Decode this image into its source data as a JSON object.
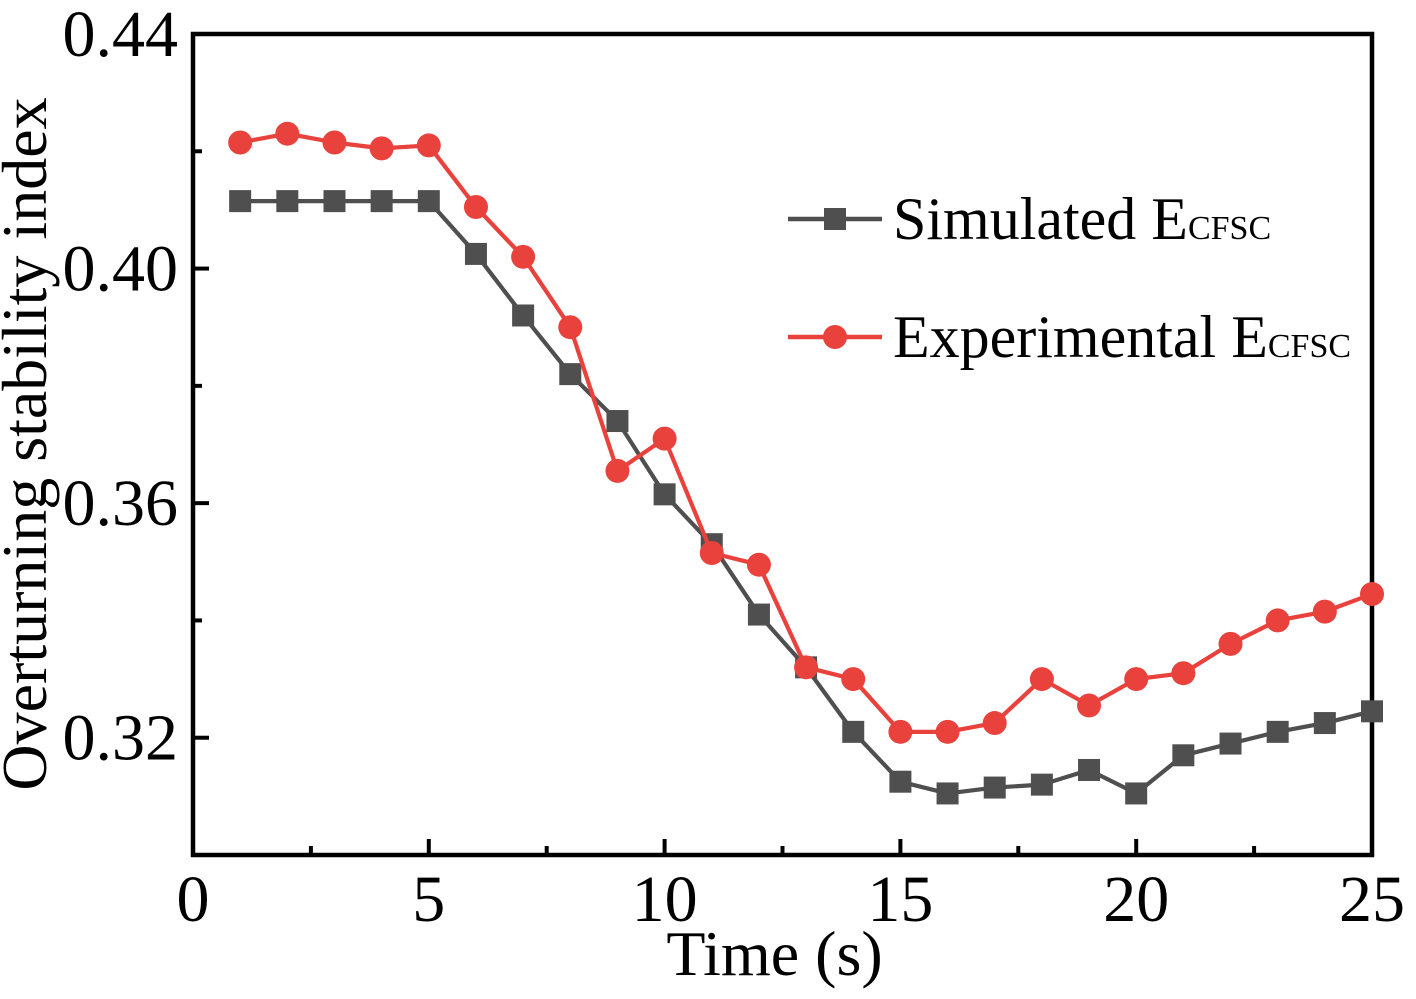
{
  "figure": {
    "background": "#ffffff",
    "frame_color": "#000000",
    "text_color": "#000000"
  },
  "chart_data": {
    "type": "line",
    "title": "",
    "xlabel": "Time (s)",
    "ylabel": "Overturning stability index",
    "xlim": [
      0,
      25
    ],
    "ylim": [
      0.3,
      0.44
    ],
    "x_major_ticks": [
      0,
      5,
      10,
      15,
      20,
      25
    ],
    "x_minor_ticks": [
      2.5,
      7.5,
      12.5,
      17.5,
      22.5
    ],
    "y_major_ticks": [
      0.32,
      0.36,
      0.4,
      0.44
    ],
    "y_minor_ticks": [
      0.34,
      0.38,
      0.42
    ],
    "y_tick_decimals": 2,
    "grid": false,
    "legend_position": "inside-upper-right",
    "x": [
      1,
      2,
      3,
      4,
      5,
      6,
      7,
      8,
      9,
      10,
      11,
      12,
      13,
      14,
      15,
      16,
      17,
      18,
      19,
      20,
      21,
      22,
      23,
      24,
      25
    ],
    "series": [
      {
        "name": "Simulated E",
        "name_subscript": "CFSC",
        "marker": "square",
        "color": "#4f4f4f",
        "values": [
          0.4115,
          0.4115,
          0.4115,
          0.4115,
          0.4115,
          0.4025,
          0.392,
          0.382,
          0.374,
          0.3615,
          0.353,
          0.341,
          0.332,
          0.321,
          0.3125,
          0.3105,
          0.3115,
          0.312,
          0.3145,
          0.3105,
          0.317,
          0.319,
          0.321,
          0.3225,
          0.3245
        ]
      },
      {
        "name": "Experimental E",
        "name_subscript": "CFSC",
        "marker": "circle",
        "color": "#e9413c",
        "values": [
          0.4215,
          0.423,
          0.4215,
          0.4205,
          0.421,
          0.4105,
          0.402,
          0.39,
          0.3655,
          0.371,
          0.3515,
          0.3495,
          0.332,
          0.33,
          0.321,
          0.321,
          0.3225,
          0.33,
          0.3255,
          0.33,
          0.331,
          0.336,
          0.34,
          0.3415,
          0.3445
        ]
      }
    ]
  }
}
